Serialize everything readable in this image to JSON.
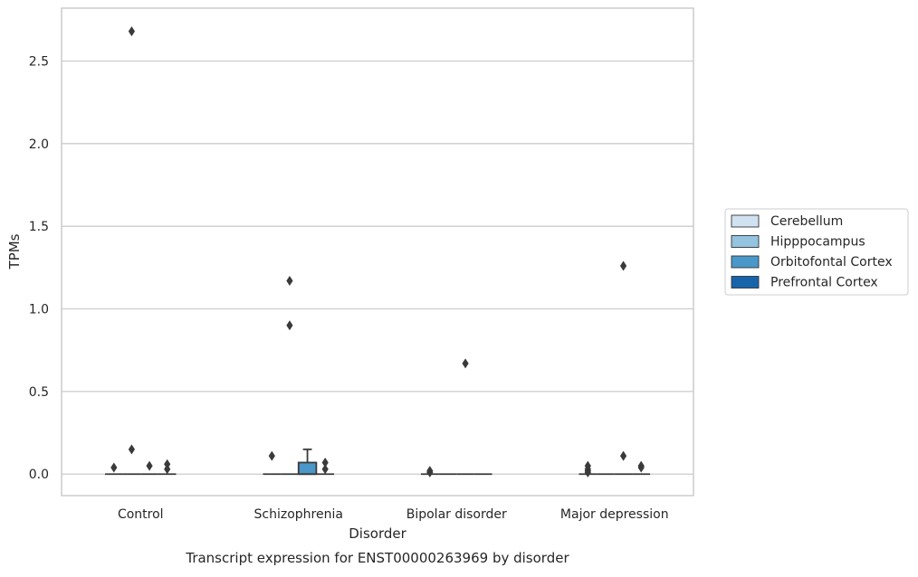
{
  "chart_data": {
    "type": "boxplot",
    "caption": "Transcript expression for ENST00000263969 by disorder",
    "xlabel": "Disorder",
    "ylabel": "TPMs",
    "ylim": [
      -0.13,
      2.82
    ],
    "yticks": [
      0.0,
      0.5,
      1.0,
      1.5,
      2.0,
      2.5
    ],
    "ytick_labels": [
      "0.0",
      "0.5",
      "1.0",
      "1.5",
      "2.0",
      "2.5"
    ],
    "grid": "horizontal",
    "legend_position": "right",
    "categories": [
      "Control",
      "Schizophrenia",
      "Bipolar disorder",
      "Major depression"
    ],
    "series": [
      {
        "name": "Cerebellum",
        "color": "#d0e1f2",
        "boxes": [
          {
            "q1": 0,
            "median": 0,
            "q3": 0,
            "whisker_low": 0,
            "whisker_high": 0,
            "outliers": [
              0.04
            ]
          },
          {
            "q1": 0,
            "median": 0,
            "q3": 0,
            "whisker_low": 0,
            "whisker_high": 0,
            "outliers": [
              0.11
            ]
          },
          {
            "q1": 0,
            "median": 0,
            "q3": 0,
            "whisker_low": 0,
            "whisker_high": 0,
            "outliers": [
              0.02,
              0.01
            ]
          },
          {
            "q1": 0,
            "median": 0,
            "q3": 0,
            "whisker_low": 0,
            "whisker_high": 0,
            "outliers": [
              0.05,
              0.03,
              0.02,
              0.01
            ]
          }
        ]
      },
      {
        "name": "Hipppocampus",
        "color": "#94c4df",
        "boxes": [
          {
            "q1": 0,
            "median": 0,
            "q3": 0,
            "whisker_low": 0,
            "whisker_high": 0,
            "outliers": [
              0.15,
              2.68
            ]
          },
          {
            "q1": 0,
            "median": 0,
            "q3": 0,
            "whisker_low": 0,
            "whisker_high": 0,
            "outliers": [
              1.17,
              0.9
            ]
          },
          {
            "q1": 0,
            "median": 0,
            "q3": 0,
            "whisker_low": 0,
            "whisker_high": 0,
            "outliers": []
          },
          {
            "q1": 0,
            "median": 0,
            "q3": 0,
            "whisker_low": 0,
            "whisker_high": 0,
            "outliers": []
          }
        ]
      },
      {
        "name": "Orbitofontal Cortex",
        "color": "#4a98c9",
        "boxes": [
          {
            "q1": 0,
            "median": 0,
            "q3": 0,
            "whisker_low": 0,
            "whisker_high": 0,
            "outliers": [
              0.05
            ]
          },
          {
            "q1": 0,
            "median": 0,
            "q3": 0.07,
            "whisker_low": 0,
            "whisker_high": 0.15,
            "outliers": []
          },
          {
            "q1": 0,
            "median": 0,
            "q3": 0,
            "whisker_low": 0,
            "whisker_high": 0,
            "outliers": [
              0.67
            ]
          },
          {
            "q1": 0,
            "median": 0,
            "q3": 0,
            "whisker_low": 0,
            "whisker_high": 0,
            "outliers": [
              1.26,
              0.11
            ]
          }
        ]
      },
      {
        "name": "Prefrontal Cortex",
        "color": "#1764ab",
        "boxes": [
          {
            "q1": 0,
            "median": 0,
            "q3": 0,
            "whisker_low": 0,
            "whisker_high": 0,
            "outliers": [
              0.06,
              0.03
            ]
          },
          {
            "q1": 0,
            "median": 0,
            "q3": 0,
            "whisker_low": 0,
            "whisker_high": 0,
            "outliers": [
              0.07,
              0.03
            ]
          },
          {
            "q1": 0,
            "median": 0,
            "q3": 0,
            "whisker_low": 0,
            "whisker_high": 0,
            "outliers": []
          },
          {
            "q1": 0,
            "median": 0,
            "q3": 0,
            "whisker_low": 0,
            "whisker_high": 0,
            "outliers": [
              0.05,
              0.04
            ]
          }
        ]
      }
    ]
  }
}
